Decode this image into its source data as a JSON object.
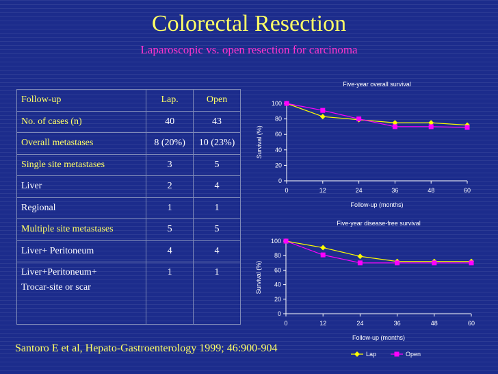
{
  "slide": {
    "title": "Colorectal Resection",
    "subtitle": "Laparoscopic vs. open resection for carcinoma",
    "citation": "Santoro E et al, Hepato-Gastroenterology 1999; 46:900-904"
  },
  "table": {
    "headers": [
      "Follow-up",
      "Lap.",
      "Open"
    ],
    "rows": [
      [
        "No. of cases (n)",
        "40",
        "43"
      ],
      [
        "Overall metastases",
        "8 (20%)",
        "10 (23%)"
      ],
      [
        "Single site metastases",
        "3",
        "5"
      ],
      [
        "Liver",
        "2",
        "4"
      ],
      [
        "Regional",
        "1",
        "1"
      ],
      [
        "Multiple site metastases",
        "5",
        "5"
      ],
      [
        "Liver+ Peritoneum",
        "4",
        "4"
      ]
    ],
    "last_row": {
      "label_line1": "Liver+Peritoneum+",
      "label_line2": "Trocar-site or scar",
      "lap": "1",
      "open": "1"
    }
  },
  "chart_data": [
    {
      "type": "line",
      "title": "Five-year overall survival",
      "xlabel": "Follow-up (months)",
      "ylabel": "Survival (%)",
      "x": [
        0,
        12,
        24,
        36,
        48,
        60
      ],
      "ylim": [
        0,
        100
      ],
      "yticks": [
        0,
        20,
        40,
        60,
        80,
        100
      ],
      "series": [
        {
          "name": "Lap",
          "values": [
            100,
            83,
            79,
            75,
            75,
            72
          ],
          "color": "#ffff00"
        },
        {
          "name": "Open",
          "values": [
            100,
            91,
            80,
            70,
            70,
            69
          ],
          "color": "#ff00ff"
        }
      ]
    },
    {
      "type": "line",
      "title": "Five-year disease-free survival",
      "xlabel": "Follow-up (months)",
      "ylabel": "Survival (%)",
      "x": [
        0,
        12,
        24,
        36,
        48,
        60
      ],
      "ylim": [
        0,
        100
      ],
      "yticks": [
        0,
        20,
        40,
        60,
        80,
        100
      ],
      "legend": [
        "Lap",
        "Open"
      ],
      "legend_position": "bottom-right",
      "series": [
        {
          "name": "Lap",
          "values": [
            100,
            91,
            79,
            72,
            72,
            72
          ],
          "color": "#ffff00"
        },
        {
          "name": "Open",
          "values": [
            100,
            81,
            70,
            70,
            70,
            70
          ],
          "color": "#ff00ff"
        }
      ]
    }
  ]
}
